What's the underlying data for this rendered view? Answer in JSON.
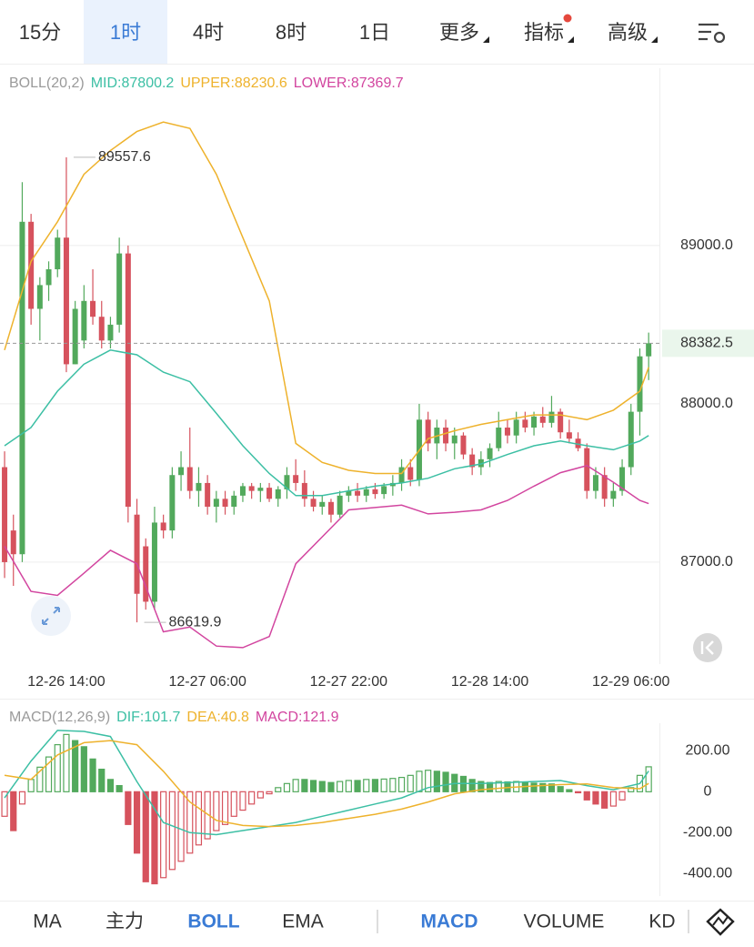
{
  "tabs": {
    "items": [
      "15分",
      "1时",
      "4时",
      "8时",
      "1日",
      "更多",
      "指标",
      "高级"
    ],
    "selected": 1
  },
  "bottom_tabs": {
    "items": [
      "MA",
      "主力",
      "BOLL",
      "EMA",
      "MACD",
      "VOLUME",
      "KD"
    ],
    "active": [
      2,
      4
    ]
  },
  "chart_data": [
    {
      "type": "candlestick",
      "header": [
        {
          "text": "BOLL(20,2)",
          "color": "#9a9a9a"
        },
        {
          "text": "MID:87800.2",
          "color": "#3cbfa4"
        },
        {
          "text": "UPPER:88230.6",
          "color": "#eeb22c"
        },
        {
          "text": "LOWER:87369.7",
          "color": "#d2459f"
        }
      ],
      "up_color": "#52a95c",
      "down_color": "#d6525d",
      "candles": [
        [
          87600,
          87700,
          86900,
          87000
        ],
        [
          87200,
          87300,
          86850,
          87050
        ],
        [
          87050,
          89400,
          87000,
          89150
        ],
        [
          89150,
          89200,
          88500,
          88600
        ],
        [
          88600,
          88800,
          88400,
          88750
        ],
        [
          88750,
          88900,
          88650,
          88850
        ],
        [
          88850,
          89100,
          88800,
          89050
        ],
        [
          89050,
          89557.6,
          88200,
          88250
        ],
        [
          88250,
          88650,
          88250,
          88600
        ],
        [
          88400,
          88750,
          88350,
          88650
        ],
        [
          88650,
          88850,
          88500,
          88550
        ],
        [
          88550,
          88650,
          88350,
          88400
        ],
        [
          88400,
          88550,
          88350,
          88500
        ],
        [
          88500,
          89050,
          88450,
          88950
        ],
        [
          88950,
          89000,
          87250,
          87350
        ],
        [
          87300,
          87400,
          86619.9,
          86800
        ],
        [
          87100,
          87150,
          86700,
          86750
        ],
        [
          86750,
          87350,
          86700,
          87250
        ],
        [
          87250,
          87300,
          87150,
          87200
        ],
        [
          87200,
          87600,
          87150,
          87550
        ],
        [
          87550,
          87700,
          87450,
          87600
        ],
        [
          87600,
          87850,
          87400,
          87450
        ],
        [
          87450,
          87600,
          87350,
          87500
        ],
        [
          87500,
          87550,
          87300,
          87350
        ],
        [
          87350,
          87450,
          87250,
          87400
        ],
        [
          87400,
          87450,
          87300,
          87350
        ],
        [
          87350,
          87450,
          87300,
          87420
        ],
        [
          87420,
          87500,
          87380,
          87480
        ],
        [
          87480,
          87500,
          87400,
          87450
        ],
        [
          87450,
          87500,
          87380,
          87470
        ],
        [
          87470,
          87500,
          87380,
          87400
        ],
        [
          87400,
          87480,
          87350,
          87460
        ],
        [
          87460,
          87600,
          87400,
          87550
        ],
        [
          87550,
          87650,
          87450,
          87500
        ],
        [
          87500,
          87580,
          87350,
          87400
        ],
        [
          87400,
          87450,
          87320,
          87350
        ],
        [
          87350,
          87420,
          87300,
          87380
        ],
        [
          87380,
          87400,
          87250,
          87300
        ],
        [
          87300,
          87450,
          87280,
          87420
        ],
        [
          87420,
          87480,
          87380,
          87450
        ],
        [
          87450,
          87500,
          87380,
          87420
        ],
        [
          87420,
          87480,
          87380,
          87460
        ],
        [
          87460,
          87500,
          87400,
          87430
        ],
        [
          87430,
          87500,
          87400,
          87480
        ],
        [
          87480,
          87550,
          87420,
          87500
        ],
        [
          87500,
          87650,
          87450,
          87600
        ],
        [
          87600,
          87650,
          87480,
          87520
        ],
        [
          87520,
          88000,
          87480,
          87900
        ],
        [
          87900,
          87950,
          87700,
          87750
        ],
        [
          87750,
          87900,
          87650,
          87850
        ],
        [
          87850,
          87900,
          87700,
          87750
        ],
        [
          87750,
          87850,
          87650,
          87800
        ],
        [
          87800,
          87820,
          87650,
          87680
        ],
        [
          87680,
          87720,
          87550,
          87600
        ],
        [
          87600,
          87700,
          87550,
          87650
        ],
        [
          87650,
          87750,
          87600,
          87720
        ],
        [
          87720,
          87950,
          87700,
          87850
        ],
        [
          87850,
          87900,
          87750,
          87800
        ],
        [
          87800,
          87950,
          87750,
          87900
        ],
        [
          87900,
          87950,
          87820,
          87850
        ],
        [
          87850,
          87950,
          87800,
          87920
        ],
        [
          87920,
          87980,
          87850,
          87880
        ],
        [
          87880,
          88050,
          87850,
          87950
        ],
        [
          87950,
          87970,
          87780,
          87820
        ],
        [
          87820,
          87900,
          87750,
          87780
        ],
        [
          87780,
          87820,
          87700,
          87720
        ],
        [
          87720,
          87750,
          87400,
          87450
        ],
        [
          87450,
          87600,
          87400,
          87550
        ],
        [
          87550,
          87600,
          87350,
          87400
        ],
        [
          87400,
          87500,
          87350,
          87450
        ],
        [
          87450,
          87650,
          87420,
          87600
        ],
        [
          87600,
          88000,
          87550,
          87950
        ],
        [
          87950,
          88350,
          87800,
          88300
        ],
        [
          88300,
          88450,
          88150,
          88382.5
        ]
      ],
      "series": [
        {
          "color": "#eeb22c",
          "x": [
            0,
            3,
            6,
            9,
            12,
            15,
            18,
            21,
            24,
            27,
            30,
            33,
            36,
            39,
            42,
            45,
            48,
            51,
            54,
            57,
            60,
            63,
            66,
            69,
            72,
            73
          ],
          "values": [
            88340,
            88900,
            89150,
            89450,
            89600,
            89720,
            89780,
            89740,
            89450,
            89050,
            88650,
            87750,
            87630,
            87580,
            87560,
            87560,
            87780,
            87830,
            87870,
            87900,
            87930,
            87930,
            87900,
            87960,
            88080,
            88230.6
          ]
        },
        {
          "color": "#3cbfa4",
          "x": [
            0,
            3,
            6,
            9,
            12,
            15,
            18,
            21,
            24,
            27,
            30,
            33,
            36,
            39,
            42,
            45,
            48,
            51,
            54,
            57,
            60,
            63,
            66,
            69,
            72,
            73
          ],
          "values": [
            87735,
            87850,
            88080,
            88250,
            88340,
            88310,
            88200,
            88140,
            87940,
            87735,
            87560,
            87420,
            87420,
            87450,
            87480,
            87500,
            87530,
            87590,
            87620,
            87680,
            87735,
            87765,
            87735,
            87710,
            87765,
            87800.2
          ]
        },
        {
          "color": "#d2459f",
          "x": [
            0,
            3,
            6,
            9,
            12,
            15,
            18,
            21,
            24,
            27,
            30,
            33,
            36,
            39,
            42,
            45,
            48,
            51,
            54,
            57,
            60,
            63,
            66,
            69,
            72,
            73
          ],
          "values": [
            87100,
            86815,
            86790,
            86930,
            87075,
            86990,
            86560,
            86590,
            86470,
            86460,
            86530,
            86990,
            87160,
            87330,
            87345,
            87360,
            87305,
            87315,
            87330,
            87390,
            87480,
            87565,
            87610,
            87505,
            87390,
            87369.7
          ]
        }
      ],
      "annotations": [
        {
          "x": 7,
          "value": 89557.6
        },
        {
          "x": 15,
          "value": 86619.9
        }
      ],
      "last_price": 88382.5,
      "xlim": [
        -0.52,
        74.22
      ],
      "ylim": [
        86356,
        90120
      ],
      "yticks": [
        {
          "value": 89000,
          "label": "89000.0"
        },
        {
          "value": 88000,
          "label": "88000.0"
        },
        {
          "value": 87000,
          "label": "87000.0"
        }
      ],
      "xticks": [
        {
          "value": 7,
          "label": "12-26 14:00"
        },
        {
          "value": 23,
          "label": "12-27 06:00"
        },
        {
          "value": 39,
          "label": "12-27 22:00"
        },
        {
          "value": 55,
          "label": "12-28 14:00"
        },
        {
          "value": 71,
          "label": "12-29 06:00"
        }
      ]
    },
    {
      "type": "macd",
      "header": [
        {
          "text": "MACD(12,26,9)",
          "color": "#9a9a9a"
        },
        {
          "text": "DIF:101.7",
          "color": "#3cbfa4"
        },
        {
          "text": "DEA:40.8",
          "color": "#eeb22c"
        },
        {
          "text": "MACD:121.9",
          "color": "#d2459f"
        }
      ],
      "up_color": "#52a95c",
      "down_color": "#d6525d",
      "hist": [
        -120,
        -190,
        -60,
        60,
        120,
        170,
        230,
        280,
        250,
        220,
        160,
        110,
        60,
        30,
        -160,
        -300,
        -440,
        -450,
        -420,
        -380,
        -340,
        -300,
        -260,
        -230,
        -190,
        -160,
        -120,
        -90,
        -60,
        -30,
        -10,
        20,
        40,
        60,
        60,
        55,
        50,
        45,
        50,
        55,
        55,
        60,
        60,
        62,
        65,
        70,
        80,
        100,
        105,
        100,
        95,
        85,
        75,
        60,
        50,
        45,
        50,
        48,
        50,
        45,
        42,
        40,
        38,
        25,
        10,
        -5,
        -40,
        -60,
        -80,
        -70,
        -40,
        20,
        80,
        121.9
      ],
      "series": [
        {
          "color": "#3cbfa4",
          "x": [
            0,
            3,
            6,
            9,
            12,
            15,
            18,
            21,
            24,
            27,
            30,
            33,
            36,
            39,
            42,
            45,
            48,
            51,
            54,
            57,
            60,
            63,
            66,
            69,
            72,
            73
          ],
          "values": [
            -30,
            150,
            300,
            295,
            270,
            50,
            -150,
            -200,
            -210,
            -190,
            -170,
            -150,
            -120,
            -90,
            -60,
            -30,
            20,
            40,
            40,
            45,
            50,
            55,
            30,
            10,
            40,
            101.7
          ]
        },
        {
          "color": "#eeb22c",
          "x": [
            0,
            3,
            6,
            9,
            12,
            15,
            18,
            21,
            24,
            27,
            30,
            33,
            36,
            39,
            42,
            45,
            48,
            51,
            54,
            57,
            60,
            63,
            66,
            69,
            72,
            73
          ],
          "values": [
            80,
            60,
            180,
            240,
            250,
            230,
            100,
            -50,
            -140,
            -165,
            -170,
            -165,
            -150,
            -130,
            -110,
            -85,
            -50,
            -10,
            10,
            20,
            28,
            35,
            38,
            20,
            15,
            40.8
          ]
        }
      ],
      "xlim": [
        -0.52,
        74.22
      ],
      "ylim": [
        -510,
        335
      ],
      "yticks": [
        {
          "value": 200,
          "label": "200.00"
        },
        0,
        {
          "value": -200,
          "label": "-200.00"
        },
        {
          "value": -400,
          "label": "-400.00"
        }
      ]
    }
  ]
}
